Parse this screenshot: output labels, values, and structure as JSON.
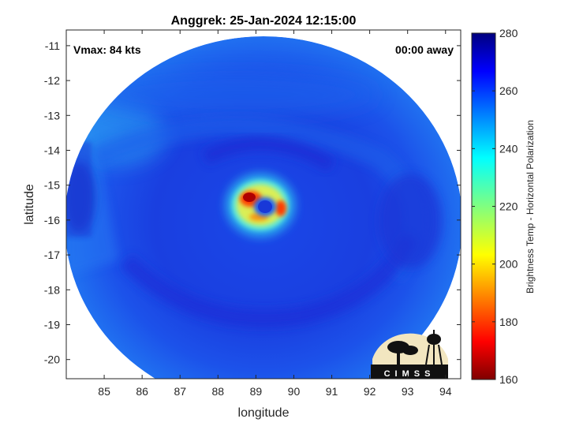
{
  "chart_data": {
    "type": "heatmap",
    "title": "Anggrek: 25-Jan-2024 12:15:00",
    "xlabel": "longitude",
    "ylabel": "latitude",
    "x_ticks": [
      85,
      86,
      87,
      88,
      89,
      90,
      91,
      92,
      93,
      94
    ],
    "y_ticks": [
      -11,
      -12,
      -13,
      -14,
      -15,
      -16,
      -17,
      -18,
      -19,
      -20
    ],
    "xlim": [
      84.0,
      94.4
    ],
    "ylim": [
      -20.55,
      -10.55
    ],
    "colorbar": {
      "label": "Brightness Temp - Horizontal Polarization",
      "ticks": [
        280,
        260,
        240,
        220,
        200,
        180,
        160
      ],
      "range": [
        160,
        280
      ],
      "colormap": "jet"
    },
    "annotations": {
      "vmax": "Vmax: 84 kts",
      "away": "00:00 away"
    },
    "storm_center": {
      "lon": 89.15,
      "lat": -15.5
    },
    "swath": {
      "center_lon": 89.3,
      "center_lat": -15.5
    },
    "eyewall_min_temp": 170,
    "background_temp": 265,
    "logo_text": "CIMSS"
  }
}
